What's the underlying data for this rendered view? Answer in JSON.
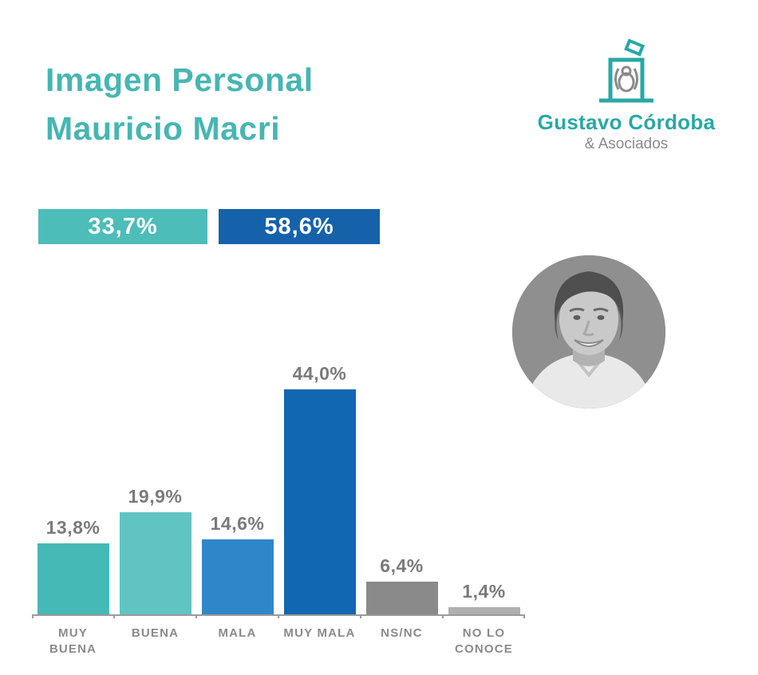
{
  "header": {
    "title_line1": "Imagen Personal",
    "title_line2": "Mauricio Macri",
    "logo": {
      "name": "Gustavo Córdoba",
      "subtitle": "& Asociados"
    }
  },
  "summary": {
    "positive": {
      "label": "33,7%",
      "color": "#4CBDB9"
    },
    "negative": {
      "label": "58,6%",
      "color": "#1562AB"
    }
  },
  "chart_data": {
    "type": "bar",
    "title": "Imagen Personal Mauricio Macri",
    "categories": [
      "MUY BUENA",
      "BUENA",
      "MALA",
      "MUY MALA",
      "NS/NC",
      "NO LO CONOCE"
    ],
    "category_display": [
      "MUY\nBUENA",
      "BUENA",
      "MALA",
      "MUY MALA",
      "NS/NC",
      "NO LO\nCONOCE"
    ],
    "values": [
      13.8,
      19.9,
      14.6,
      44.0,
      6.4,
      1.4
    ],
    "value_labels": [
      "13,8%",
      "19,9%",
      "14,6%",
      "44,0%",
      "6,4%",
      "1,4%"
    ],
    "bar_colors": [
      "#45B9B5",
      "#60C4C3",
      "#2F87C9",
      "#1167B1",
      "#8A8A8A",
      "#AFAFAF"
    ],
    "xlabel": "",
    "ylabel": "",
    "ylim": [
      0,
      48
    ],
    "grid": false,
    "legend": null
  },
  "colors": {
    "title_teal": "#46B6B2",
    "logo_teal": "#29A8A5",
    "axis_gray": "#9B9B9B",
    "label_gray": "#7A7A7A"
  }
}
